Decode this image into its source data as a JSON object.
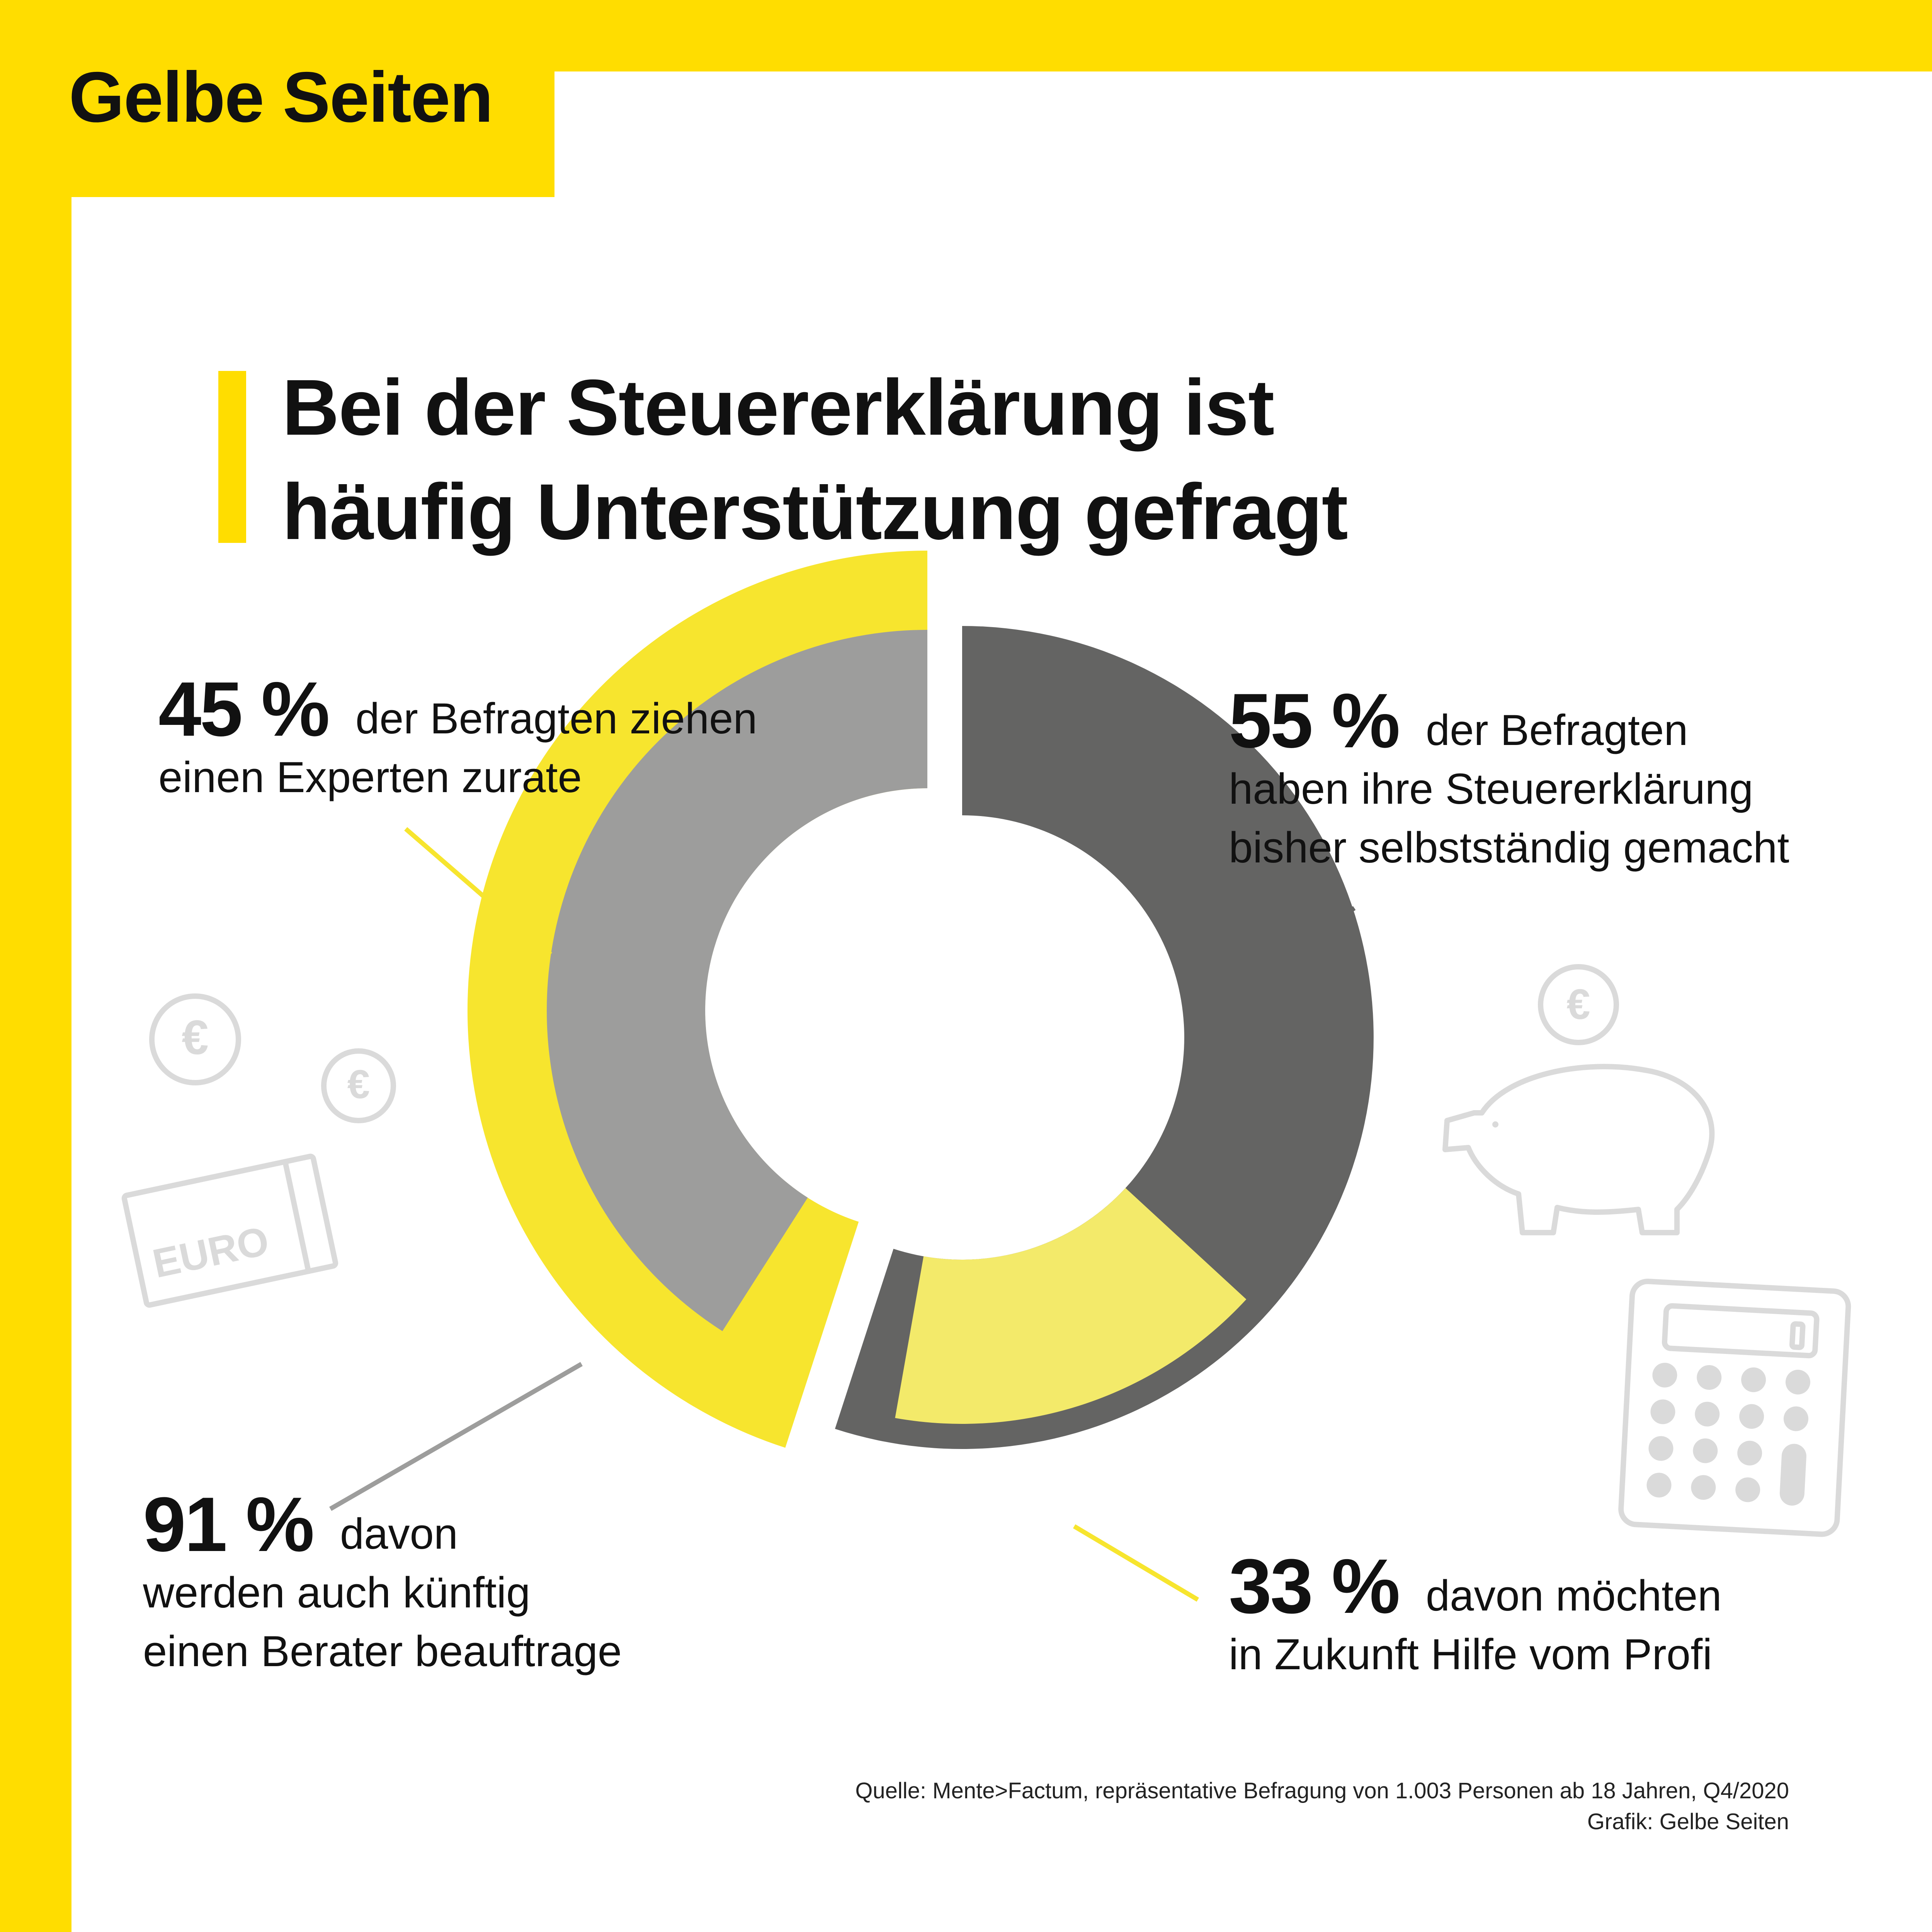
{
  "brand": "Gelbe Seiten",
  "title_lines": [
    "Bei der Steuererklärung ist",
    "häufig Unterstützung gefragt"
  ],
  "callouts": {
    "expert": {
      "pct": "45 %",
      "lines": [
        "der Befragten ziehen",
        "einen Experten zurate"
      ]
    },
    "self": {
      "pct": "55 %",
      "lines": [
        "der Befragten",
        "haben ihre Steuererklärung",
        "bisher selbstständig gemacht"
      ]
    },
    "advisor": {
      "pct": "91 %",
      "lines": [
        "davon",
        "werden auch künftig",
        "einen Berater beauftrage"
      ]
    },
    "profi": {
      "pct": "33 %",
      "lines": [
        "davon möchten",
        "in Zukunft Hilfe vom Profi"
      ]
    }
  },
  "icons": {
    "coin_symbol": "€",
    "banknote_label": "EURO",
    "names": [
      "euro-coin-icon",
      "euro-coin-icon",
      "euro-banknote-icon",
      "piggy-bank-icon",
      "calculator-icon"
    ]
  },
  "source_lines": [
    "Quelle: Mente>Factum, repräsentative Befragung von 1.003 Personen ab 18 Jahren, Q4/2020",
    "Grafik: Gelbe Seiten"
  ],
  "colors": {
    "brand_yellow": "#FFDD00",
    "expert_outer": "#F7E52E",
    "expert_inner": "#9D9D9C",
    "self_outer": "#646463",
    "self_inner": "#F3EA6A",
    "icon_gray": "#DADADA"
  },
  "chart_data": {
    "type": "pie",
    "style": "nested donut",
    "outer": [
      {
        "label": "der Befragten ziehen einen Experten zurate",
        "value": 45
      },
      {
        "label": "der Befragten haben ihre Steuererklärung bisher selbstständig gemacht",
        "value": 55
      }
    ],
    "inner": [
      {
        "parent": "der Befragten ziehen einen Experten zurate",
        "label": "davon werden auch künftig einen Berater beauftrage",
        "value": 91
      },
      {
        "parent": "der Befragten haben ihre Steuererklärung bisher selbstständig gemacht",
        "label": "davon möchten in Zukunft Hilfe vom Profi",
        "value": 33
      }
    ]
  }
}
